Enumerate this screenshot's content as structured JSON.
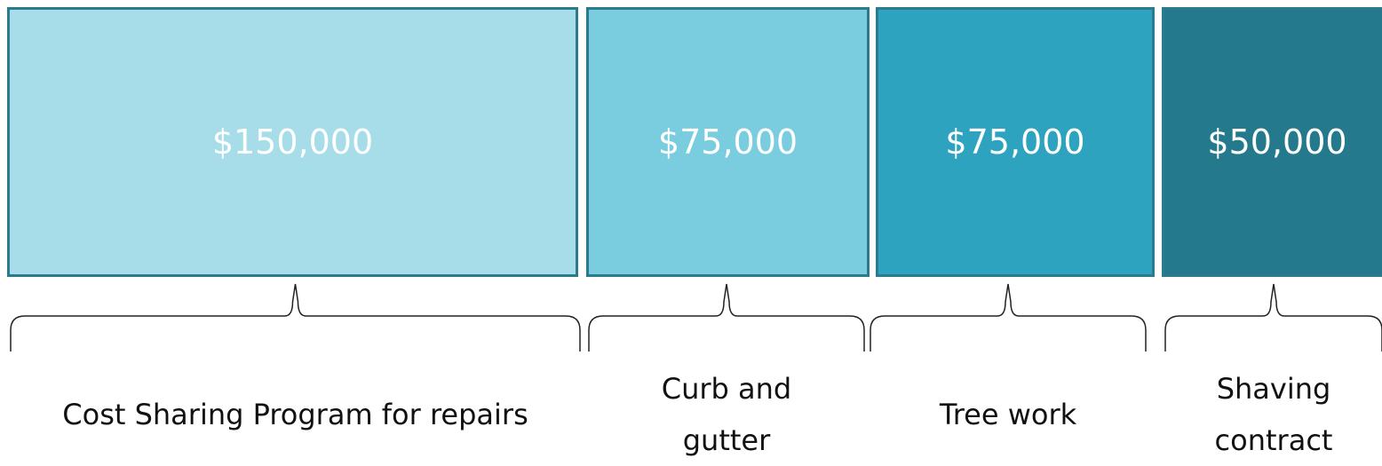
{
  "items": [
    {
      "value": "$150,000",
      "label": "Cost Sharing Program for repairs",
      "color": "#a6dde9"
    },
    {
      "value": "$75,000",
      "label": "Curb and gutter",
      "color": "#7accdf"
    },
    {
      "value": "$75,000",
      "label": "Tree work",
      "color": "#2ea3c0"
    },
    {
      "value": "$50,000",
      "label": "Shaving contract",
      "color": "#247a8c"
    }
  ]
}
